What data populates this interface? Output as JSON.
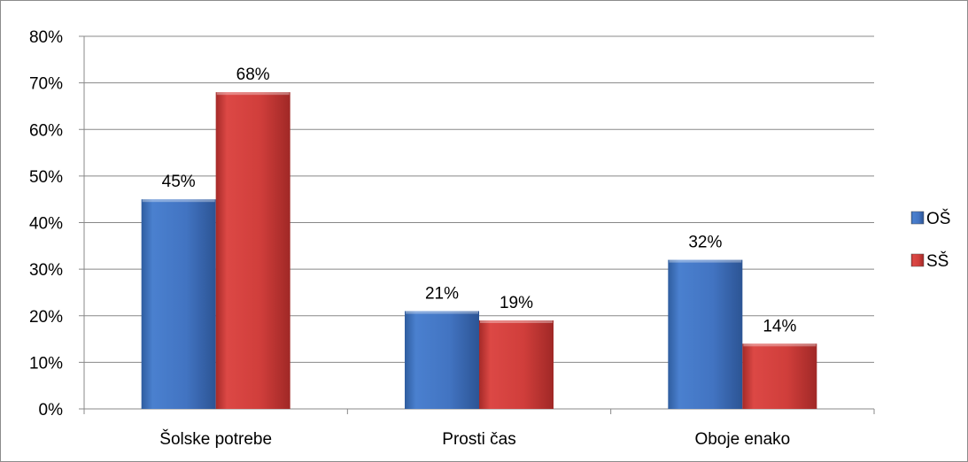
{
  "chart_data": {
    "type": "bar",
    "categories": [
      "Šolske potrebe",
      "Prosti čas",
      "Oboje enako"
    ],
    "series": [
      {
        "name": "OŠ",
        "values": [
          0.45,
          0.21,
          0.32
        ],
        "color": "#3f74c4"
      },
      {
        "name": "SŠ",
        "values": [
          0.68,
          0.19,
          0.14
        ],
        "color": "#cf3f3c"
      }
    ],
    "data_labels": [
      [
        "45%",
        "21%",
        "32%"
      ],
      [
        "68%",
        "19%",
        "14%"
      ]
    ],
    "y_ticks": [
      "0%",
      "10%",
      "20%",
      "30%",
      "40%",
      "50%",
      "60%",
      "70%",
      "80%"
    ],
    "ylim": [
      0,
      0.8
    ],
    "grid": true,
    "legend_position": "right",
    "title": "",
    "xlabel": "",
    "ylabel": ""
  }
}
